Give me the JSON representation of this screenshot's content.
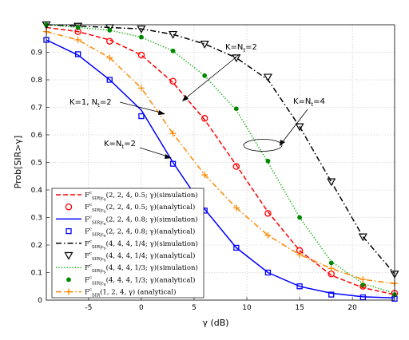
{
  "chart_data": {
    "type": "line",
    "xlabel": "γ (dB)",
    "ylabel": "Prob[SIR>γ]",
    "xlim": [
      -9,
      24
    ],
    "ylim": [
      0,
      1
    ],
    "xticks": [
      -5,
      0,
      5,
      10,
      15,
      20
    ],
    "yticks": [
      0.1,
      0.2,
      0.3,
      0.4,
      0.5,
      0.6,
      0.7,
      0.8,
      0.9
    ],
    "grid": true,
    "legend_position": "bottom-left",
    "series": [
      {
        "name": "F^c_{SIR|ε_s}(2,2,4,0.5;γ)(simulation)",
        "color": "#ff0000",
        "style": "dashed",
        "marker": "none",
        "x": [
          -9,
          -6,
          -3,
          0,
          3,
          6,
          9,
          12,
          15,
          18,
          21,
          24
        ],
        "y": [
          0.99,
          0.975,
          0.945,
          0.89,
          0.79,
          0.655,
          0.49,
          0.32,
          0.18,
          0.09,
          0.045,
          0.02
        ]
      },
      {
        "name": "F^c_{SIR|ε_s}(2,2,4,0.5;γ)(analytical)",
        "color": "#ff0000",
        "style": "none",
        "marker": "circle",
        "x": [
          -6,
          -3,
          0,
          3,
          6,
          9,
          12,
          15,
          18,
          21,
          24
        ],
        "y": [
          0.975,
          0.94,
          0.89,
          0.795,
          0.66,
          0.485,
          0.315,
          0.18,
          0.095,
          0.05,
          0.025
        ]
      },
      {
        "name": "F^c_{SIR|ε_s}(2,2,4,0.8;γ)(simulation)",
        "color": "#0000ff",
        "style": "solid",
        "marker": "none",
        "x": [
          -9,
          -6,
          -3,
          0,
          3,
          6,
          9,
          12,
          15,
          18,
          21,
          24
        ],
        "y": [
          0.945,
          0.89,
          0.8,
          0.69,
          0.5,
          0.33,
          0.19,
          0.1,
          0.05,
          0.025,
          0.012,
          0.008
        ]
      },
      {
        "name": "F^c_{SIR|ε_s}(2,2,4,0.8;γ)(analytical)",
        "color": "#0000ff",
        "style": "none",
        "marker": "square",
        "x": [
          -9,
          -6,
          -3,
          0,
          3,
          6,
          9,
          12,
          15,
          18,
          21,
          24
        ],
        "y": [
          0.945,
          0.893,
          0.8,
          0.668,
          0.495,
          0.325,
          0.19,
          0.1,
          0.05,
          0.02,
          0.01,
          0.005
        ]
      },
      {
        "name": "F^c_{SIR|ε_s}(4,4,4,1/4;γ)(simulation)",
        "color": "#000000",
        "style": "dashdot",
        "marker": "none",
        "x": [
          -9,
          -6,
          -3,
          0,
          3,
          6,
          9,
          12,
          15,
          18,
          21,
          24
        ],
        "y": [
          1.0,
          0.995,
          0.99,
          0.985,
          0.965,
          0.93,
          0.88,
          0.8,
          0.63,
          0.43,
          0.23,
          0.095
        ]
      },
      {
        "name": "F^c_{SIR|ε_s}(4,4,4,1/4;γ)(analytical)",
        "color": "#000000",
        "style": "none",
        "marker": "triangle-down",
        "x": [
          -9,
          -6,
          -3,
          0,
          3,
          6,
          9,
          12,
          15,
          18,
          21,
          24
        ],
        "y": [
          1.0,
          0.995,
          0.99,
          0.985,
          0.965,
          0.93,
          0.88,
          0.81,
          0.63,
          0.43,
          0.23,
          0.095
        ]
      },
      {
        "name": "F^c_{SIR|ε_s}(4,4,4,1/3;γ)(simulation)",
        "color": "#00aa00",
        "style": "dotted",
        "marker": "none",
        "x": [
          -9,
          -6,
          -3,
          0,
          3,
          6,
          9,
          12,
          15,
          18,
          21,
          24
        ],
        "y": [
          1.0,
          0.99,
          0.98,
          0.955,
          0.905,
          0.815,
          0.69,
          0.5,
          0.3,
          0.14,
          0.06,
          0.025
        ]
      },
      {
        "name": "F^c_{SIR|ε_s}(4,4,4,1/3;γ)(analytical)",
        "color": "#008800",
        "style": "none",
        "marker": "dot",
        "x": [
          -9,
          -6,
          -3,
          0,
          3,
          6,
          9,
          12,
          15,
          18,
          21,
          24
        ],
        "y": [
          1.0,
          0.99,
          0.98,
          0.955,
          0.905,
          0.815,
          0.695,
          0.505,
          0.3,
          0.135,
          0.055,
          0.02
        ]
      },
      {
        "name": "F^c_{SIR}(1,2,4,γ) (analytical)",
        "color": "#ff8800",
        "style": "dashdot",
        "marker": "plus",
        "x": [
          -9,
          -6,
          -3,
          0,
          3,
          6,
          9,
          12,
          15,
          18,
          21,
          24
        ],
        "y": [
          0.975,
          0.945,
          0.88,
          0.77,
          0.605,
          0.455,
          0.335,
          0.235,
          0.165,
          0.115,
          0.075,
          0.06
        ]
      }
    ],
    "annotations": [
      {
        "text": "K=N",
        "sub": "t",
        "suffix": "=2",
        "id": "top"
      },
      {
        "text": "K=1, N",
        "sub": "t",
        "suffix": "=2",
        "id": "left"
      },
      {
        "text": "K=N",
        "sub": "t",
        "suffix": "=2",
        "id": "mid"
      },
      {
        "text": "K=N",
        "sub": "t",
        "suffix": "=4",
        "id": "right"
      }
    ]
  }
}
